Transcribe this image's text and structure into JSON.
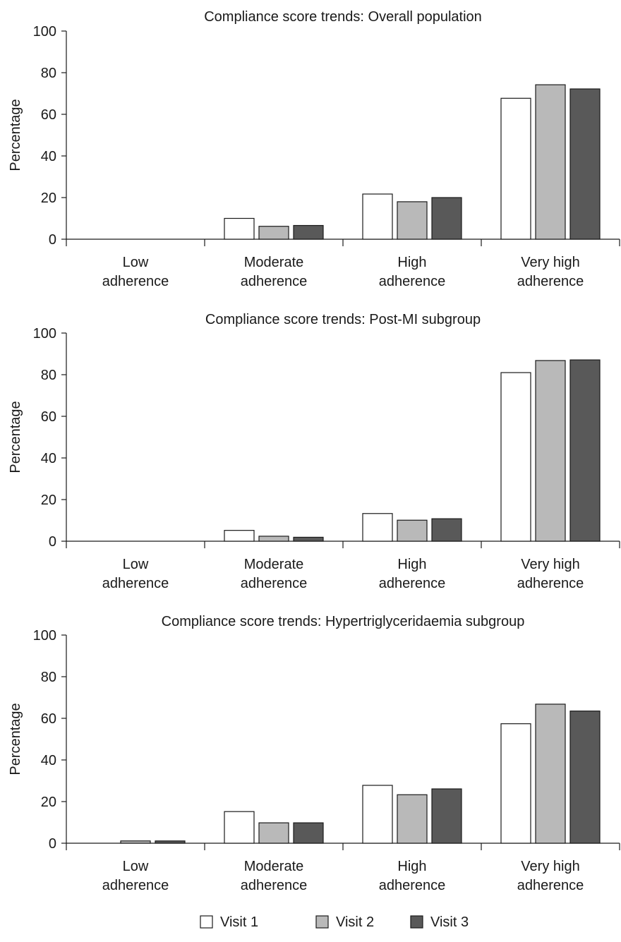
{
  "chart_data": [
    {
      "type": "bar",
      "title": "Compliance score trends: Overall population",
      "ylabel": "Percentage",
      "xlabel": "",
      "ylim": [
        0,
        100
      ],
      "yticks": [
        0,
        20,
        40,
        60,
        80,
        100
      ],
      "categories": [
        [
          "Low",
          "adherence"
        ],
        [
          "Moderate",
          "adherence"
        ],
        [
          "High",
          "adherence"
        ],
        [
          "Very high",
          "adherence"
        ]
      ],
      "series": [
        {
          "name": "Visit 1",
          "values": [
            0,
            10,
            21.7,
            67.7
          ]
        },
        {
          "name": "Visit 2",
          "values": [
            0,
            6.2,
            18,
            74.2
          ]
        },
        {
          "name": "Visit 3",
          "values": [
            0,
            6.6,
            20,
            72.2
          ]
        }
      ]
    },
    {
      "type": "bar",
      "title": "Compliance score trends: Post-MI subgroup",
      "ylabel": "Percentage",
      "xlabel": "",
      "ylim": [
        0,
        100
      ],
      "yticks": [
        0,
        20,
        40,
        60,
        80,
        100
      ],
      "categories": [
        [
          "Low",
          "adherence"
        ],
        [
          "Moderate",
          "adherence"
        ],
        [
          "High",
          "adherence"
        ],
        [
          "Very high",
          "adherence"
        ]
      ],
      "series": [
        {
          "name": "Visit 1",
          "values": [
            0,
            5.2,
            13.3,
            81
          ]
        },
        {
          "name": "Visit 2",
          "values": [
            0,
            2.4,
            10.1,
            86.8
          ]
        },
        {
          "name": "Visit 3",
          "values": [
            0,
            1.9,
            10.8,
            87.1
          ]
        }
      ]
    },
    {
      "type": "bar",
      "title": "Compliance score trends: Hypertriglyceridaemia subgroup",
      "ylabel": "Percentage",
      "xlabel": "",
      "ylim": [
        0,
        100
      ],
      "yticks": [
        0,
        20,
        40,
        60,
        80,
        100
      ],
      "categories": [
        [
          "Low",
          "adherence"
        ],
        [
          "Moderate",
          "adherence"
        ],
        [
          "High",
          "adherence"
        ],
        [
          "Very high",
          "adherence"
        ]
      ],
      "series": [
        {
          "name": "Visit 1",
          "values": [
            0,
            15.2,
            27.8,
            57.4
          ]
        },
        {
          "name": "Visit 2",
          "values": [
            1.1,
            9.8,
            23.3,
            66.8
          ]
        },
        {
          "name": "Visit 3",
          "values": [
            1.1,
            9.8,
            26.1,
            63.5
          ]
        }
      ]
    }
  ],
  "colors": {
    "Visit 1": "#ffffff",
    "Visit 2": "#b9b9b9",
    "Visit 3": "#595959"
  },
  "legend": {
    "placement": "bottom-center",
    "items": [
      {
        "label": "Visit 1",
        "color": "#ffffff"
      },
      {
        "label": "Visit 2",
        "color": "#b9b9b9"
      },
      {
        "label": "Visit 3",
        "color": "#595959"
      }
    ]
  }
}
